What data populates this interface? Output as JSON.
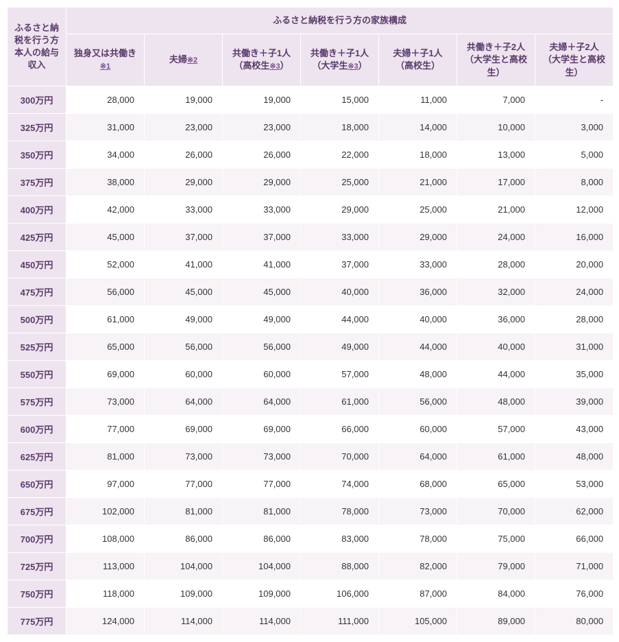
{
  "table": {
    "type": "table",
    "header_bg": "#eee4ef",
    "header_fg": "#5b3a6b",
    "row_odd_bg": "#ffffff",
    "row_even_bg": "#f7f3f7",
    "border_color": "#ffffff",
    "corner_header": "ふるさと納税を行う方本人の給与収入",
    "group_header": "ふるさと納税を行う方の家族構成",
    "col_headers": [
      {
        "text": "独身又は共働き",
        "fn": "※1"
      },
      {
        "text": "夫婦",
        "fn": "※2"
      },
      {
        "text": "共働き＋子1人（高校生",
        "fn": "※3",
        "suffix": "）"
      },
      {
        "text": "共働き＋子1人（大学生",
        "fn": "※3",
        "suffix": "）"
      },
      {
        "text": "夫婦＋子1人（高校生）",
        "fn": null
      },
      {
        "text": "共働き＋子2人（大学生と高校生）",
        "fn": null
      },
      {
        "text": "夫婦＋子2人（大学生と高校生）",
        "fn": null
      }
    ],
    "rows": [
      {
        "label": "300万円",
        "cells": [
          "28,000",
          "19,000",
          "19,000",
          "15,000",
          "11,000",
          "7,000",
          "-"
        ]
      },
      {
        "label": "325万円",
        "cells": [
          "31,000",
          "23,000",
          "23,000",
          "18,000",
          "14,000",
          "10,000",
          "3,000"
        ]
      },
      {
        "label": "350万円",
        "cells": [
          "34,000",
          "26,000",
          "26,000",
          "22,000",
          "18,000",
          "13,000",
          "5,000"
        ]
      },
      {
        "label": "375万円",
        "cells": [
          "38,000",
          "29,000",
          "29,000",
          "25,000",
          "21,000",
          "17,000",
          "8,000"
        ]
      },
      {
        "label": "400万円",
        "cells": [
          "42,000",
          "33,000",
          "33,000",
          "29,000",
          "25,000",
          "21,000",
          "12,000"
        ]
      },
      {
        "label": "425万円",
        "cells": [
          "45,000",
          "37,000",
          "37,000",
          "33,000",
          "29,000",
          "24,000",
          "16,000"
        ]
      },
      {
        "label": "450万円",
        "cells": [
          "52,000",
          "41,000",
          "41,000",
          "37,000",
          "33,000",
          "28,000",
          "20,000"
        ]
      },
      {
        "label": "475万円",
        "cells": [
          "56,000",
          "45,000",
          "45,000",
          "40,000",
          "36,000",
          "32,000",
          "24,000"
        ]
      },
      {
        "label": "500万円",
        "cells": [
          "61,000",
          "49,000",
          "49,000",
          "44,000",
          "40,000",
          "36,000",
          "28,000"
        ]
      },
      {
        "label": "525万円",
        "cells": [
          "65,000",
          "56,000",
          "56,000",
          "49,000",
          "44,000",
          "40,000",
          "31,000"
        ]
      },
      {
        "label": "550万円",
        "cells": [
          "69,000",
          "60,000",
          "60,000",
          "57,000",
          "48,000",
          "44,000",
          "35,000"
        ]
      },
      {
        "label": "575万円",
        "cells": [
          "73,000",
          "64,000",
          "64,000",
          "61,000",
          "56,000",
          "48,000",
          "39,000"
        ]
      },
      {
        "label": "600万円",
        "cells": [
          "77,000",
          "69,000",
          "69,000",
          "66,000",
          "60,000",
          "57,000",
          "43,000"
        ]
      },
      {
        "label": "625万円",
        "cells": [
          "81,000",
          "73,000",
          "73,000",
          "70,000",
          "64,000",
          "61,000",
          "48,000"
        ]
      },
      {
        "label": "650万円",
        "cells": [
          "97,000",
          "77,000",
          "77,000",
          "74,000",
          "68,000",
          "65,000",
          "53,000"
        ]
      },
      {
        "label": "675万円",
        "cells": [
          "102,000",
          "81,000",
          "81,000",
          "78,000",
          "73,000",
          "70,000",
          "62,000"
        ]
      },
      {
        "label": "700万円",
        "cells": [
          "108,000",
          "86,000",
          "86,000",
          "83,000",
          "78,000",
          "75,000",
          "66,000"
        ]
      },
      {
        "label": "725万円",
        "cells": [
          "113,000",
          "104,000",
          "104,000",
          "88,000",
          "82,000",
          "79,000",
          "71,000"
        ]
      },
      {
        "label": "750万円",
        "cells": [
          "118,000",
          "109,000",
          "109,000",
          "106,000",
          "87,000",
          "84,000",
          "76,000"
        ]
      },
      {
        "label": "775万円",
        "cells": [
          "124,000",
          "114,000",
          "114,000",
          "111,000",
          "105,000",
          "89,000",
          "80,000"
        ]
      }
    ]
  }
}
